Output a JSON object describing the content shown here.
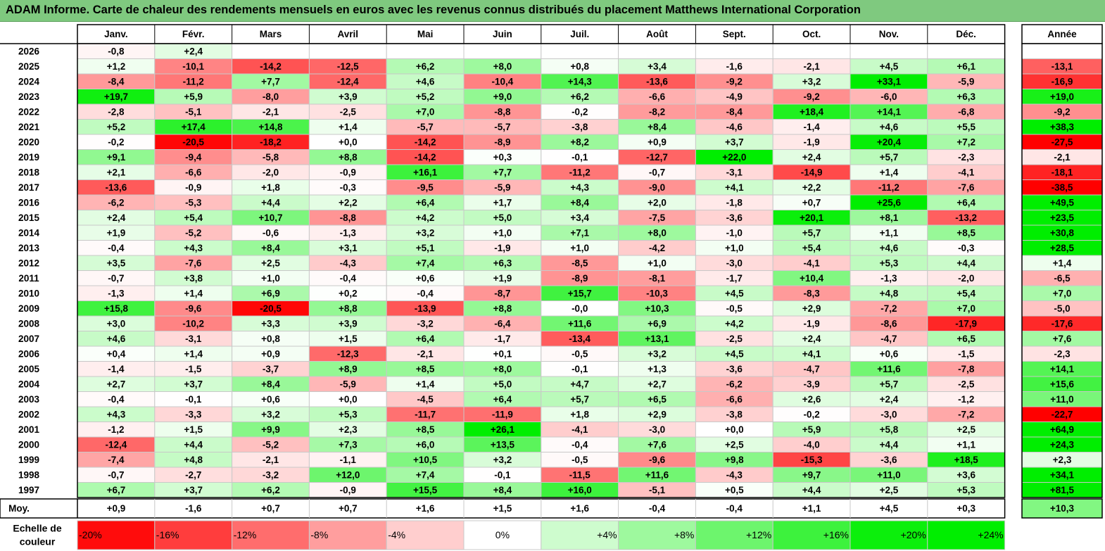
{
  "title": "ADAM Informe. Carte de chaleur des rendements mensuels en euros avec les revenus connus distribués du placement Matthews International Corporation",
  "chart_data": {
    "type": "heatmap",
    "months": [
      "Janv.",
      "Févr.",
      "Mars",
      "Avril",
      "Mai",
      "Juin",
      "Juil.",
      "Août",
      "Sept.",
      "Oct.",
      "Nov.",
      "Déc."
    ],
    "year_header": "Année",
    "rows": [
      {
        "label": "2026",
        "m": [
          "-0,8",
          "+2,4",
          "",
          "",
          "",
          "",
          "",
          "",
          "",
          "",
          "",
          ""
        ],
        "y": ""
      },
      {
        "label": "2025",
        "m": [
          "+1,2",
          "-10,1",
          "-14,2",
          "-12,5",
          "+6,2",
          "+8,0",
          "+0,8",
          "+3,4",
          "-1,6",
          "-2,1",
          "+4,5",
          "+6,1"
        ],
        "y": "-13,1"
      },
      {
        "label": "2024",
        "m": [
          "-8,4",
          "-11,2",
          "+7,7",
          "-12,4",
          "+4,6",
          "-10,4",
          "+14,3",
          "-13,6",
          "-9,2",
          "+3,2",
          "+33,1",
          "-5,9"
        ],
        "y": "-16,9"
      },
      {
        "label": "2023",
        "m": [
          "+19,7",
          "+5,9",
          "-8,0",
          "+3,9",
          "+5,2",
          "+9,0",
          "+6,2",
          "-6,6",
          "-4,9",
          "-9,2",
          "-6,0",
          "+6,3"
        ],
        "y": "+19,0"
      },
      {
        "label": "2022",
        "m": [
          "-2,8",
          "-5,1",
          "-2,1",
          "-2,5",
          "+7,0",
          "-8,8",
          "-0,2",
          "-8,2",
          "-8,4",
          "+18,4",
          "+14,1",
          "-6,8"
        ],
        "y": "-9,2"
      },
      {
        "label": "2021",
        "m": [
          "+5,2",
          "+17,4",
          "+14,8",
          "+1,4",
          "-5,7",
          "-5,7",
          "-3,8",
          "+8,4",
          "-4,6",
          "-1,4",
          "+4,6",
          "+5,5"
        ],
        "y": "+38,3"
      },
      {
        "label": "2020",
        "m": [
          "-0,2",
          "-20,5",
          "-18,2",
          "+0,0",
          "-14,2",
          "-8,9",
          "+8,2",
          "+0,9",
          "+3,7",
          "-1,9",
          "+20,4",
          "+7,2"
        ],
        "y": "-27,5"
      },
      {
        "label": "2019",
        "m": [
          "+9,1",
          "-9,4",
          "-5,8",
          "+8,8",
          "-14,2",
          "+0,3",
          "-0,1",
          "-12,7",
          "+22,0",
          "+2,4",
          "+5,7",
          "-2,3"
        ],
        "y": "-2,1"
      },
      {
        "label": "2018",
        "m": [
          "+2,1",
          "-6,6",
          "-2,0",
          "-0,9",
          "+16,1",
          "+7,7",
          "-11,2",
          "-0,7",
          "-3,1",
          "-14,9",
          "+1,4",
          "-4,1"
        ],
        "y": "-18,1"
      },
      {
        "label": "2017",
        "m": [
          "-13,6",
          "-0,9",
          "+1,8",
          "-0,3",
          "-9,5",
          "-5,9",
          "+4,3",
          "-9,0",
          "+4,1",
          "+2,2",
          "-11,2",
          "-7,6"
        ],
        "y": "-38,5"
      },
      {
        "label": "2016",
        "m": [
          "-6,2",
          "-5,3",
          "+4,4",
          "+2,2",
          "+6,4",
          "+1,7",
          "+8,4",
          "+2,0",
          "-1,8",
          "+0,7",
          "+25,6",
          "+6,4"
        ],
        "y": "+49,5"
      },
      {
        "label": "2015",
        "m": [
          "+2,4",
          "+5,4",
          "+10,7",
          "-8,8",
          "+4,2",
          "+5,0",
          "+3,4",
          "-7,5",
          "-3,6",
          "+20,1",
          "+8,1",
          "-13,2"
        ],
        "y": "+23,5"
      },
      {
        "label": "2014",
        "m": [
          "+1,9",
          "-5,2",
          "-0,6",
          "-1,3",
          "+3,2",
          "+1,0",
          "+7,1",
          "+8,0",
          "-1,0",
          "+5,7",
          "+1,1",
          "+8,5"
        ],
        "y": "+30,8"
      },
      {
        "label": "2013",
        "m": [
          "-0,4",
          "+4,3",
          "+8,4",
          "+3,1",
          "+5,1",
          "-1,9",
          "+1,0",
          "-4,2",
          "+1,0",
          "+5,4",
          "+4,6",
          "-0,3"
        ],
        "y": "+28,5"
      },
      {
        "label": "2012",
        "m": [
          "+3,5",
          "-7,6",
          "+2,5",
          "-4,3",
          "+7,4",
          "+6,3",
          "-8,5",
          "+1,0",
          "-3,0",
          "-4,1",
          "+5,3",
          "+4,4"
        ],
        "y": "+1,4"
      },
      {
        "label": "2011",
        "m": [
          "-0,7",
          "+3,8",
          "+1,0",
          "-0,4",
          "+0,6",
          "+1,9",
          "-8,9",
          "-8,1",
          "-1,7",
          "+10,4",
          "-1,3",
          "-2,0"
        ],
        "y": "-6,5"
      },
      {
        "label": "2010",
        "m": [
          "-1,3",
          "+1,4",
          "+6,9",
          "+0,2",
          "-0,4",
          "-8,7",
          "+15,7",
          "-10,3",
          "+4,5",
          "-8,3",
          "+4,8",
          "+5,4"
        ],
        "y": "+7,0"
      },
      {
        "label": "2009",
        "m": [
          "+15,8",
          "-9,6",
          "-20,5",
          "+8,8",
          "-13,9",
          "+8,8",
          "-0,0",
          "+10,3",
          "-0,5",
          "+2,9",
          "-7,2",
          "+7,0"
        ],
        "y": "-5,0"
      },
      {
        "label": "2008",
        "m": [
          "+3,0",
          "-10,2",
          "+3,3",
          "+3,9",
          "-3,2",
          "-6,4",
          "+11,6",
          "+6,9",
          "+4,2",
          "-1,9",
          "-8,6",
          "-17,9"
        ],
        "y": "-17,6"
      },
      {
        "label": "2007",
        "m": [
          "+4,6",
          "-3,1",
          "+0,8",
          "+1,5",
          "+6,4",
          "-1,7",
          "-13,4",
          "+13,1",
          "-2,5",
          "+2,4",
          "-4,7",
          "+6,5"
        ],
        "y": "+7,6"
      },
      {
        "label": "2006",
        "m": [
          "+0,4",
          "+1,4",
          "+0,9",
          "-12,3",
          "-2,1",
          "+0,1",
          "-0,5",
          "+3,2",
          "+4,5",
          "+4,1",
          "+0,6",
          "-1,5"
        ],
        "y": "-2,3"
      },
      {
        "label": "2005",
        "m": [
          "-1,4",
          "-1,5",
          "-3,7",
          "+8,9",
          "+8,5",
          "+8,0",
          "-0,1",
          "+1,3",
          "-3,6",
          "-4,7",
          "+11,6",
          "-7,8"
        ],
        "y": "+14,1"
      },
      {
        "label": "2004",
        "m": [
          "+2,7",
          "+3,7",
          "+8,4",
          "-5,9",
          "+1,4",
          "+5,0",
          "+4,7",
          "+2,7",
          "-6,2",
          "-3,9",
          "+5,7",
          "-2,5"
        ],
        "y": "+15,6"
      },
      {
        "label": "2003",
        "m": [
          "-0,4",
          "-0,1",
          "+0,6",
          "+0,0",
          "-4,5",
          "+6,4",
          "+5,7",
          "+6,5",
          "-6,6",
          "+2,6",
          "+2,4",
          "-1,2"
        ],
        "y": "+11,0"
      },
      {
        "label": "2002",
        "m": [
          "+4,3",
          "-3,3",
          "+3,2",
          "+5,3",
          "-11,7",
          "-11,9",
          "+1,8",
          "+2,9",
          "-3,8",
          "-0,2",
          "-3,0",
          "-7,2"
        ],
        "y": "-22,7"
      },
      {
        "label": "2001",
        "m": [
          "-1,2",
          "+1,5",
          "+9,9",
          "+2,3",
          "+8,5",
          "+26,1",
          "-4,1",
          "-3,0",
          "+0,0",
          "+5,9",
          "+5,8",
          "+2,5"
        ],
        "y": "+64,9"
      },
      {
        "label": "2000",
        "m": [
          "-12,4",
          "+4,4",
          "-5,2",
          "+7,3",
          "+6,0",
          "+13,5",
          "-0,4",
          "+7,6",
          "+2,5",
          "-4,0",
          "+4,4",
          "+1,1"
        ],
        "y": "+24,3"
      },
      {
        "label": "1999",
        "m": [
          "-7,4",
          "+4,8",
          "-2,1",
          "-1,1",
          "+10,5",
          "+3,2",
          "-0,5",
          "-9,6",
          "+9,8",
          "-15,3",
          "-3,6",
          "+18,5"
        ],
        "y": "+2,3"
      },
      {
        "label": "1998",
        "m": [
          "-0,7",
          "-2,7",
          "-3,2",
          "+12,0",
          "+7,4",
          "-0,1",
          "-11,5",
          "+11,6",
          "-4,3",
          "+9,7",
          "+11,0",
          "+3,6"
        ],
        "y": "+34,1"
      },
      {
        "label": "1997",
        "m": [
          "+6,7",
          "+3,7",
          "+6,2",
          "-0,9",
          "+15,5",
          "+8,4",
          "+16,0",
          "-5,1",
          "+0,5",
          "+4,4",
          "+2,5",
          "+5,3"
        ],
        "y": "+81,5"
      }
    ],
    "average": {
      "label": "Moy.",
      "m": [
        "+0,9",
        "-1,6",
        "+0,7",
        "+0,7",
        "+1,6",
        "+1,5",
        "+1,6",
        "-0,4",
        "-0,4",
        "+1,1",
        "+4,5",
        "+0,3"
      ],
      "y": "+10,3"
    },
    "scale": {
      "label_line1": "Echelle de",
      "label_line2": "couleur",
      "steps": [
        "-20%",
        "-16%",
        "-12%",
        "-8%",
        "-4%",
        "0%",
        "+4%",
        "+8%",
        "+12%",
        "+16%",
        "+20%",
        "+24%"
      ],
      "values": [
        -20,
        -16,
        -12,
        -8,
        -4,
        0,
        4,
        8,
        12,
        16,
        20,
        24
      ]
    },
    "colors": {
      "negative_max": "#ff0000",
      "neutral": "#ffffff",
      "positive_max": "#00ee00",
      "title_bg": "#7fc97f",
      "grid": "#c8c8c8",
      "border": "#000000"
    }
  }
}
